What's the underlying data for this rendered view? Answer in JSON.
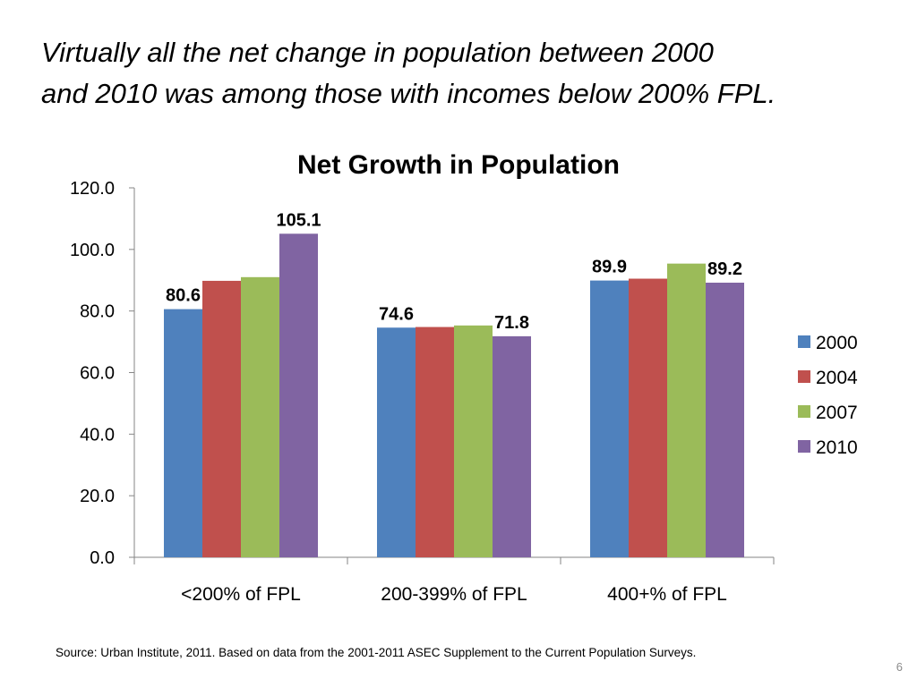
{
  "slide": {
    "headline_line1": "Virtually all the net change in population between 2000",
    "headline_line2": "and 2010 was among those with incomes below 200% FPL.",
    "source": "Source: Urban Institute, 2011. Based on data from the 2001-2011 ASEC Supplement to the Current Population Surveys.",
    "page_number": "6"
  },
  "chart_data": {
    "type": "bar",
    "title": "Net Growth in Population",
    "xlabel": "",
    "ylabel": "",
    "categories": [
      "<200% of FPL",
      "200-399% of FPL",
      "400+% of FPL"
    ],
    "series": [
      {
        "name": "2000",
        "color": "#4f81bd",
        "values": [
          80.6,
          74.6,
          89.9
        ]
      },
      {
        "name": "2004",
        "color": "#c0504d",
        "values": [
          89.8,
          74.8,
          90.5
        ]
      },
      {
        "name": "2007",
        "color": "#9bbb59",
        "values": [
          91.0,
          75.3,
          95.4
        ]
      },
      {
        "name": "2010",
        "color": "#8064a2",
        "values": [
          105.1,
          71.8,
          89.2
        ]
      }
    ],
    "data_labels": [
      {
        "series": "2000",
        "category": "<200% of FPL",
        "text": "80.6"
      },
      {
        "series": "2010",
        "category": "<200% of FPL",
        "text": "105.1"
      },
      {
        "series": "2000",
        "category": "200-399% of FPL",
        "text": "74.6"
      },
      {
        "series": "2010",
        "category": "200-399% of FPL",
        "text": "71.8"
      },
      {
        "series": "2000",
        "category": "400+% of FPL",
        "text": "89.9"
      },
      {
        "series": "2010",
        "category": "400+% of FPL",
        "text": "89.2"
      }
    ],
    "ylim": [
      0,
      120
    ],
    "yticks": [
      "0.0",
      "20.0",
      "40.0",
      "60.0",
      "80.0",
      "100.0",
      "120.0"
    ],
    "grid": false,
    "legend_position": "right"
  }
}
